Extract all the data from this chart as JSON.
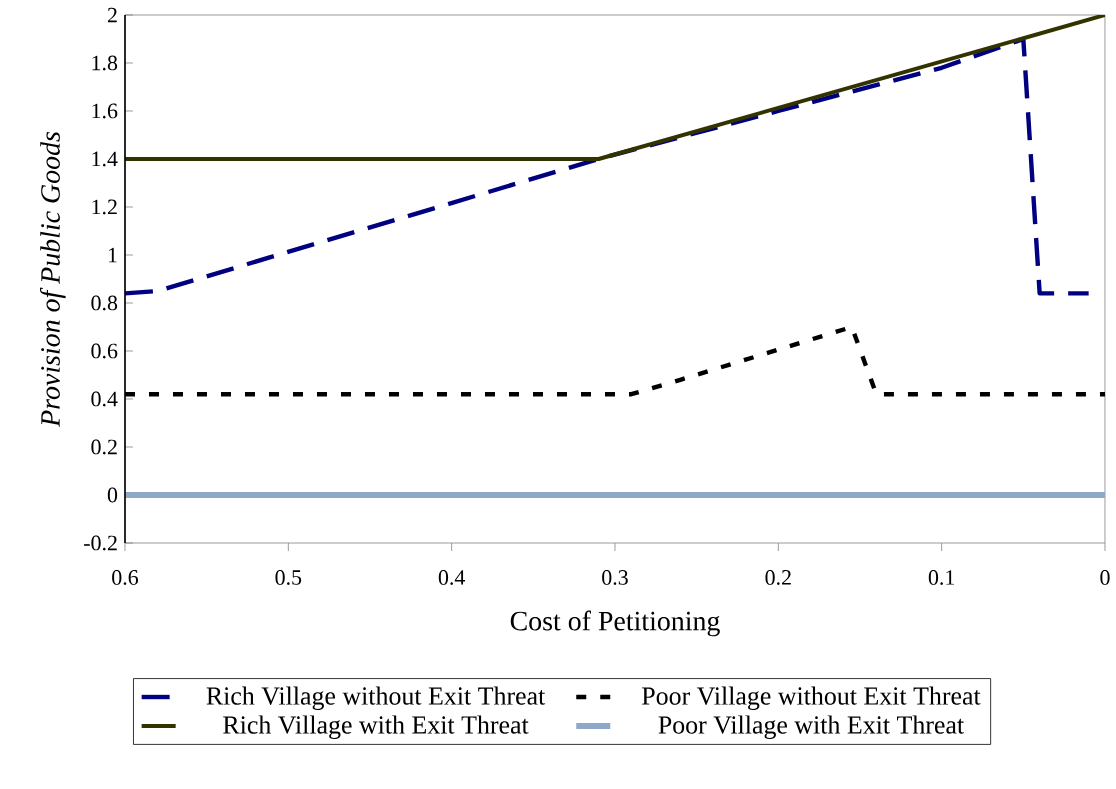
{
  "chart_data": {
    "type": "line",
    "xlabel": "Cost of Petitioning",
    "ylabel": "Provision of Public Goods",
    "xlim": [
      0.6,
      0
    ],
    "ylim": [
      -0.2,
      2
    ],
    "xticks": [
      0.6,
      0.5,
      0.4,
      0.3,
      0.2,
      0.1,
      0
    ],
    "yticks": [
      -0.2,
      0,
      0.2,
      0.4,
      0.6,
      0.8,
      1,
      1.2,
      1.4,
      1.6,
      1.8,
      2
    ],
    "legend": "bottom",
    "marker": "none",
    "series": [
      {
        "name": "Rich Village without Exit Threat",
        "color": "#000080",
        "line_style": "dashed",
        "x": [
          0.6,
          0.58,
          0.31,
          0.2,
          0.1,
          0.05,
          0.04,
          0.01
        ],
        "values": [
          0.84,
          0.85,
          1.4,
          1.6,
          1.78,
          1.9,
          0.84,
          0.84
        ]
      },
      {
        "name": "Poor Village without Exit Threat",
        "color": "#000000",
        "line_style": "dotted",
        "x": [
          0.6,
          0.29,
          0.26,
          0.155,
          0.14,
          0
        ],
        "values": [
          0.42,
          0.42,
          0.48,
          0.7,
          0.42,
          0.42
        ]
      },
      {
        "name": "Rich Village with Exit Threat",
        "color": "#333300",
        "line_style": "solid",
        "x": [
          0.6,
          0.31,
          0
        ],
        "values": [
          1.4,
          1.4,
          2
        ]
      },
      {
        "name": "Poor Village with Exit Threat",
        "color": "#8fa8c8",
        "line_style": "solid",
        "x": [
          0.6,
          0
        ],
        "values": [
          0,
          0
        ]
      }
    ]
  }
}
